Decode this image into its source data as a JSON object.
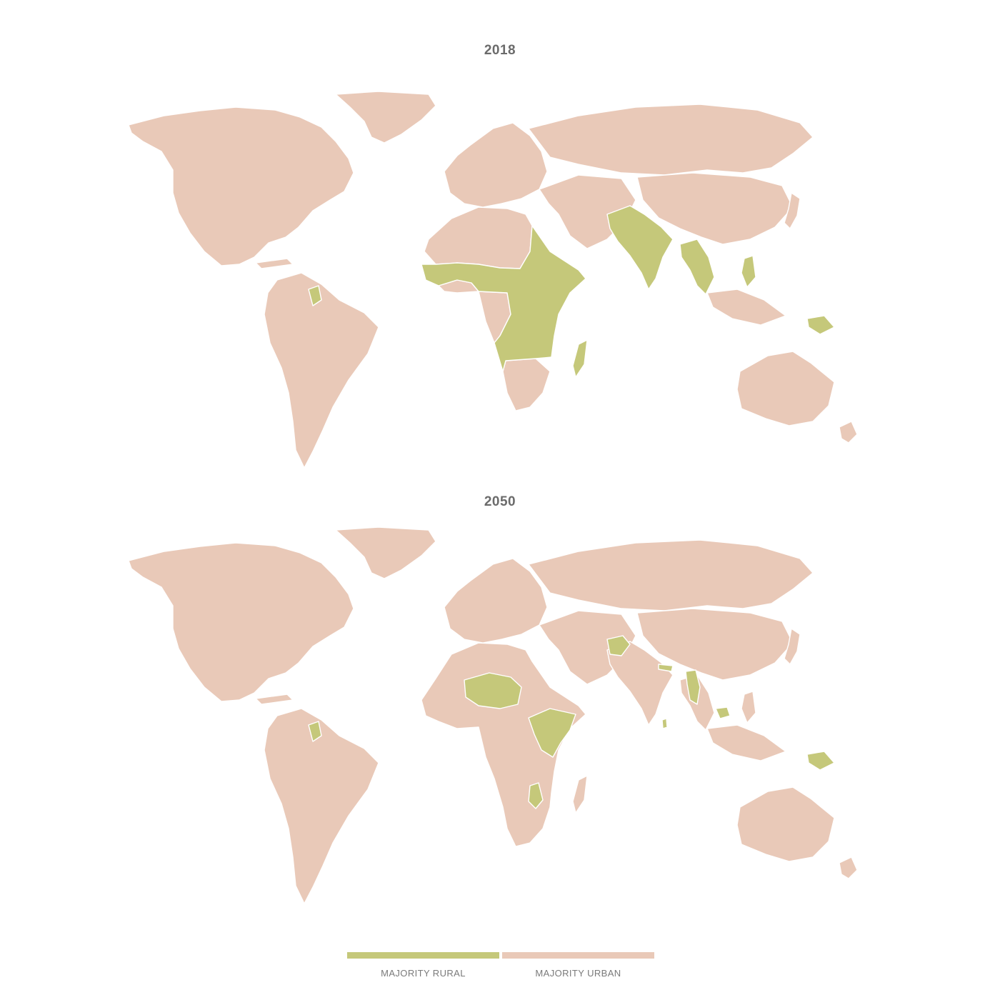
{
  "colors": {
    "rural": "#c5c87a",
    "urban": "#e9c9b8",
    "borders": "#ffffff"
  },
  "maps": [
    {
      "year": "2018",
      "majority_rural_regions": [
        "Sub-Saharan Africa",
        "Egypt",
        "South Asia",
        "Mainland Southeast Asia",
        "Philippines",
        "Papua New Guinea",
        "Guyana"
      ]
    },
    {
      "year": "2050",
      "majority_rural_regions": [
        "Niger and Chad",
        "Ethiopia, South Sudan, Uganda and Kenya",
        "Malawi",
        "Afghanistan",
        "Nepal",
        "Myanmar",
        "Cambodia",
        "Sri Lanka",
        "Papua New Guinea",
        "Guyana"
      ]
    }
  ],
  "legend": {
    "rural_label": "MAJORITY RURAL",
    "urban_label": "MAJORITY URBAN"
  }
}
